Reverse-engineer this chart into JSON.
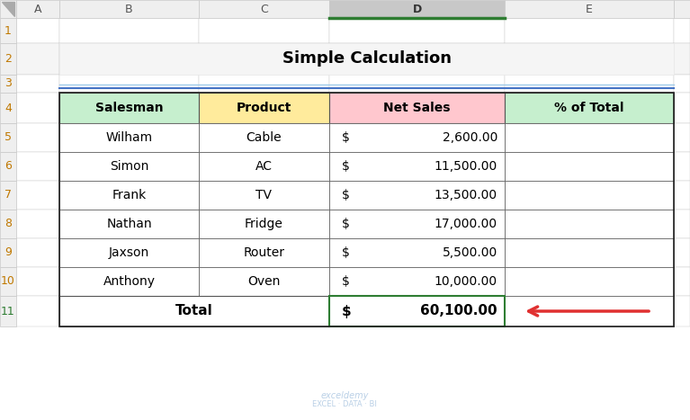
{
  "title": "Simple Calculation",
  "col_headers": [
    "Salesman",
    "Product",
    "Net Sales",
    "% of Total"
  ],
  "header_colors": [
    "#c6efce",
    "#ffeb9c",
    "#ffc7ce",
    "#c6efce"
  ],
  "rows": [
    [
      "Wilham",
      "Cable",
      "2,600.00"
    ],
    [
      "Simon",
      "AC",
      "11,500.00"
    ],
    [
      "Frank",
      "TV",
      "13,500.00"
    ],
    [
      "Nathan",
      "Fridge",
      "17,000.00"
    ],
    [
      "Jaxson",
      "Router",
      "5,500.00"
    ],
    [
      "Anthony",
      "Oven",
      "10,000.00"
    ]
  ],
  "total_amount": "60,100.00",
  "bg_color": "#ffffff",
  "grid_color": "#c8c8c8",
  "excel_header_bg": "#efefef",
  "selected_col_bg": "#c8d8e8",
  "selected_col_border": "#2e7d32",
  "table_border_color": "#555555",
  "arrow_color": "#e03030",
  "title_line_color": "#4472c4",
  "title_line_color2": "#9ecae9",
  "watermark_color": "#a8c4e0",
  "row_num_color": "#c07800"
}
